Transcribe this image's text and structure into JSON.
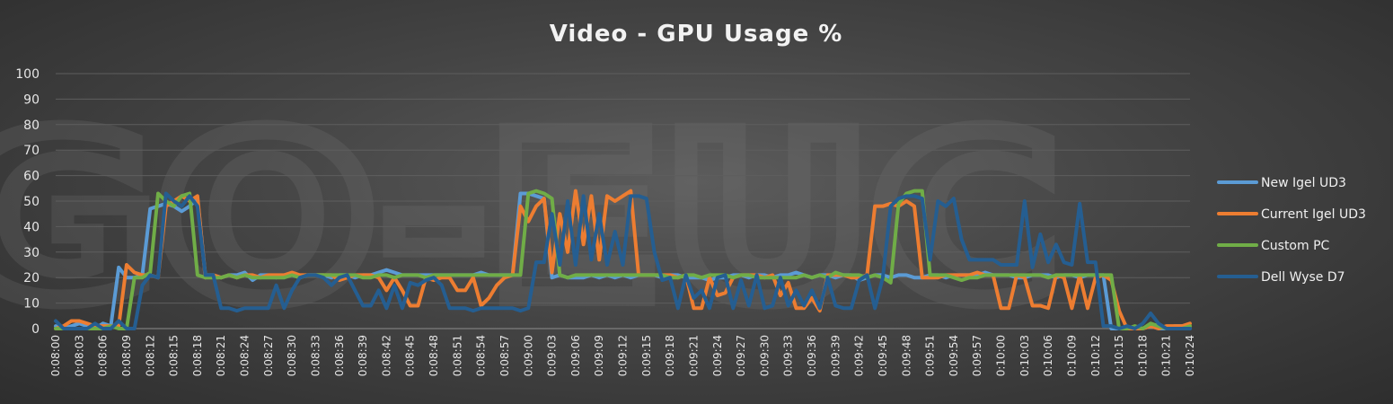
{
  "chart_data": {
    "type": "line",
    "title": "Video - GPU Usage %",
    "xlabel": "",
    "ylabel": "",
    "ylim": [
      0,
      100
    ],
    "yticks": [
      0,
      10,
      20,
      30,
      40,
      50,
      60,
      70,
      80,
      90,
      100
    ],
    "grid": true,
    "legend_position": "right",
    "watermark": "GO-EUC",
    "x": [
      "0:08:00",
      "0:08:01",
      "0:08:02",
      "0:08:03",
      "0:08:04",
      "0:08:05",
      "0:08:06",
      "0:08:07",
      "0:08:08",
      "0:08:09",
      "0:08:10",
      "0:08:11",
      "0:08:12",
      "0:08:13",
      "0:08:14",
      "0:08:15",
      "0:08:16",
      "0:08:17",
      "0:08:18",
      "0:08:19",
      "0:08:20",
      "0:08:21",
      "0:08:22",
      "0:08:23",
      "0:08:24",
      "0:08:25",
      "0:08:26",
      "0:08:27",
      "0:08:28",
      "0:08:29",
      "0:08:30",
      "0:08:31",
      "0:08:32",
      "0:08:33",
      "0:08:34",
      "0:08:35",
      "0:08:36",
      "0:08:37",
      "0:08:38",
      "0:08:39",
      "0:08:40",
      "0:08:41",
      "0:08:42",
      "0:08:43",
      "0:08:44",
      "0:08:45",
      "0:08:46",
      "0:08:47",
      "0:08:48",
      "0:08:49",
      "0:08:50",
      "0:08:51",
      "0:08:52",
      "0:08:53",
      "0:08:54",
      "0:08:55",
      "0:08:56",
      "0:08:57",
      "0:08:58",
      "0:08:59",
      "0:09:00",
      "0:09:01",
      "0:09:02",
      "0:09:03",
      "0:09:04",
      "0:09:05",
      "0:09:06",
      "0:09:07",
      "0:09:08",
      "0:09:09",
      "0:09:10",
      "0:09:11",
      "0:09:12",
      "0:09:13",
      "0:09:14",
      "0:09:15",
      "0:09:16",
      "0:09:17",
      "0:09:18",
      "0:09:19",
      "0:09:20",
      "0:09:21",
      "0:09:22",
      "0:09:23",
      "0:09:24",
      "0:09:25",
      "0:09:26",
      "0:09:27",
      "0:09:28",
      "0:09:29",
      "0:09:30",
      "0:09:31",
      "0:09:32",
      "0:09:33",
      "0:09:34",
      "0:09:35",
      "0:09:36",
      "0:09:37",
      "0:09:38",
      "0:09:39",
      "0:09:40",
      "0:09:41",
      "0:09:42",
      "0:09:43",
      "0:09:44",
      "0:09:45",
      "0:09:46",
      "0:09:47",
      "0:09:48",
      "0:09:49",
      "0:09:50",
      "0:09:51",
      "0:09:52",
      "0:09:53",
      "0:09:54",
      "0:09:55",
      "0:09:56",
      "0:09:57",
      "0:09:58",
      "0:09:59",
      "0:10:00",
      "0:10:01",
      "0:10:02",
      "0:10:03",
      "0:10:04",
      "0:10:05",
      "0:10:06",
      "0:10:07",
      "0:10:08",
      "0:10:09",
      "0:10:10",
      "0:10:11",
      "0:10:12",
      "0:10:13",
      "0:10:14",
      "0:10:15",
      "0:10:16",
      "0:10:17",
      "0:10:18",
      "0:10:19",
      "0:10:20",
      "0:10:21",
      "0:10:22",
      "0:10:23",
      "0:10:24"
    ],
    "x_tick_labels": [
      "0:08:00",
      "0:08:03",
      "0:08:06",
      "0:08:09",
      "0:08:12",
      "0:08:15",
      "0:08:18",
      "0:08:21",
      "0:08:24",
      "0:08:27",
      "0:08:30",
      "0:08:33",
      "0:08:36",
      "0:08:39",
      "0:08:42",
      "0:08:45",
      "0:08:48",
      "0:08:51",
      "0:08:54",
      "0:08:57",
      "0:09:00",
      "0:09:03",
      "0:09:06",
      "0:09:09",
      "0:09:12",
      "0:09:15",
      "0:09:18",
      "0:09:21",
      "0:09:24",
      "0:09:27",
      "0:09:30",
      "0:09:33",
      "0:09:36",
      "0:09:39",
      "0:09:42",
      "0:09:45",
      "0:09:48",
      "0:09:51",
      "0:09:54",
      "0:09:57",
      "0:10:00",
      "0:10:03",
      "0:10:06",
      "0:10:09",
      "0:10:12",
      "0:10:15",
      "0:10:18",
      "0:10:21",
      "0:10:24"
    ],
    "series": [
      {
        "name": "New Igel UD3",
        "color": "#5b9bd5",
        "values": [
          1,
          0,
          1,
          2,
          1,
          0,
          2,
          1,
          24,
          20,
          20,
          21,
          47,
          48,
          49,
          48,
          46,
          48,
          51,
          21,
          21,
          20,
          21,
          21,
          22,
          19,
          21,
          21,
          20,
          21,
          21,
          20,
          21,
          21,
          21,
          20,
          21,
          21,
          20,
          21,
          21,
          22,
          23,
          22,
          21,
          21,
          21,
          21,
          21,
          21,
          21,
          21,
          21,
          21,
          22,
          21,
          21,
          21,
          21,
          53,
          53,
          52,
          51,
          20,
          21,
          20,
          20,
          20,
          21,
          20,
          21,
          20,
          21,
          20,
          21,
          21,
          21,
          20,
          21,
          21,
          20,
          20,
          20,
          19,
          20,
          20,
          21,
          21,
          20,
          21,
          21,
          20,
          21,
          21,
          22,
          21,
          20,
          21,
          21,
          20,
          21,
          21,
          19,
          20,
          21,
          21,
          20,
          21,
          21,
          20,
          20,
          21,
          21,
          20,
          21,
          21,
          21,
          21,
          22,
          21,
          21,
          21,
          20,
          20,
          21,
          21,
          21,
          20,
          21,
          21,
          20,
          21,
          21,
          21,
          0,
          0,
          0,
          0,
          0,
          1,
          0,
          0,
          1,
          1,
          0
        ]
      },
      {
        "name": "Current Igel UD3",
        "color": "#ed7d31",
        "values": [
          0,
          1,
          3,
          3,
          2,
          1,
          1,
          1,
          1,
          25,
          22,
          21,
          21,
          20,
          48,
          50,
          52,
          50,
          52,
          20,
          21,
          20,
          21,
          20,
          21,
          21,
          20,
          21,
          21,
          21,
          22,
          21,
          21,
          21,
          21,
          21,
          19,
          20,
          21,
          21,
          21,
          20,
          15,
          20,
          15,
          9,
          9,
          20,
          19,
          20,
          20,
          15,
          15,
          20,
          9,
          12,
          17,
          20,
          21,
          48,
          42,
          48,
          51,
          22,
          45,
          30,
          54,
          33,
          52,
          27,
          52,
          50,
          52,
          54,
          21,
          21,
          21,
          21,
          21,
          20,
          21,
          8,
          8,
          20,
          13,
          14,
          20,
          21,
          21,
          21,
          20,
          21,
          13,
          18,
          8,
          8,
          12,
          7,
          21,
          21,
          21,
          20,
          20,
          21,
          48,
          48,
          49,
          48,
          50,
          48,
          20,
          20,
          20,
          21,
          21,
          21,
          21,
          22,
          21,
          21,
          8,
          8,
          21,
          20,
          9,
          9,
          8,
          21,
          20,
          8,
          21,
          8,
          20,
          21,
          19,
          7,
          0,
          0,
          0,
          1,
          0,
          1,
          1,
          1,
          2
        ]
      },
      {
        "name": "Custom PC",
        "color": "#70ad47",
        "values": [
          0,
          0,
          0,
          0,
          0,
          0,
          0,
          1,
          0,
          0,
          20,
          20,
          22,
          53,
          50,
          48,
          52,
          53,
          21,
          20,
          20,
          20,
          21,
          20,
          21,
          20,
          20,
          20,
          20,
          20,
          21,
          20,
          21,
          21,
          21,
          21,
          21,
          21,
          21,
          20,
          20,
          21,
          21,
          20,
          21,
          21,
          21,
          20,
          21,
          21,
          21,
          21,
          21,
          21,
          21,
          21,
          21,
          21,
          21,
          21,
          53,
          54,
          53,
          51,
          21,
          20,
          21,
          21,
          21,
          21,
          21,
          21,
          21,
          21,
          21,
          21,
          21,
          21,
          20,
          20,
          21,
          21,
          20,
          21,
          21,
          21,
          20,
          21,
          21,
          20,
          20,
          20,
          20,
          20,
          20,
          21,
          20,
          21,
          20,
          22,
          21,
          21,
          21,
          20,
          21,
          20,
          18,
          49,
          53,
          54,
          54,
          21,
          21,
          21,
          20,
          19,
          20,
          20,
          21,
          21,
          21,
          21,
          21,
          21,
          21,
          21,
          20,
          21,
          21,
          21,
          21,
          21,
          21,
          21,
          21,
          0,
          0,
          1,
          0,
          2,
          1,
          0,
          0,
          0,
          1
        ]
      },
      {
        "name": "Dell Wyse D7",
        "color": "#255e91",
        "values": [
          3,
          0,
          0,
          0,
          0,
          2,
          0,
          0,
          3,
          0,
          0,
          17,
          21,
          20,
          53,
          50,
          48,
          52,
          48,
          21,
          21,
          8,
          8,
          7,
          8,
          8,
          8,
          8,
          17,
          8,
          15,
          20,
          21,
          21,
          20,
          17,
          20,
          21,
          15,
          9,
          9,
          15,
          8,
          17,
          8,
          18,
          17,
          19,
          20,
          17,
          8,
          8,
          8,
          7,
          8,
          8,
          8,
          8,
          8,
          7,
          8,
          26,
          26,
          45,
          25,
          50,
          25,
          52,
          27,
          45,
          25,
          38,
          25,
          52,
          52,
          51,
          30,
          19,
          20,
          8,
          21,
          12,
          15,
          8,
          20,
          21,
          8,
          19,
          9,
          21,
          8,
          9,
          20,
          9,
          15,
          9,
          15,
          8,
          20,
          9,
          8,
          8,
          19,
          21,
          8,
          20,
          48,
          51,
          52,
          52,
          51,
          27,
          50,
          48,
          51,
          35,
          27,
          27,
          27,
          27,
          25,
          25,
          25,
          50,
          24,
          37,
          26,
          33,
          26,
          25,
          49,
          26,
          26,
          1,
          1,
          0,
          1,
          0,
          2,
          6,
          2,
          0,
          0,
          0,
          0
        ]
      }
    ]
  }
}
